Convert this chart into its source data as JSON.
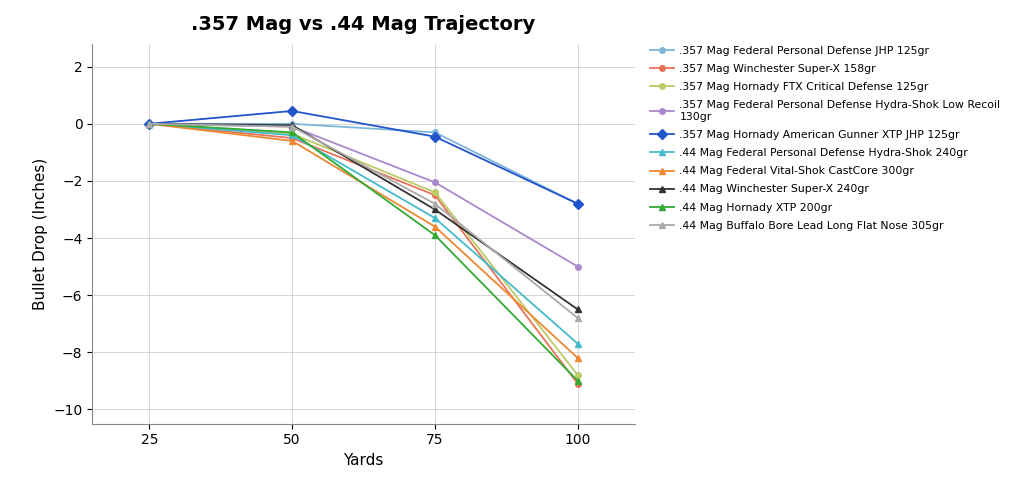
{
  "title": ".357 Mag vs .44 Mag Trajectory",
  "xlabel": "Yards",
  "ylabel": "Bullet Drop (Inches)",
  "xlim": [
    15,
    110
  ],
  "ylim": [
    -10.5,
    2.8
  ],
  "xticks": [
    25,
    50,
    75,
    100
  ],
  "yticks": [
    -10,
    -8,
    -6,
    -4,
    -2,
    0,
    2
  ],
  "background_color": "#ffffff",
  "series": [
    {
      "label": ".357 Mag Federal Personal Defense JHP 125gr",
      "x": [
        25,
        50,
        75,
        100
      ],
      "y": [
        0,
        0.0,
        -0.3,
        -2.8
      ],
      "color": "#7EB6D9",
      "marker": "o",
      "markersize": 4
    },
    {
      "label": ".357 Mag Winchester Super-X 158gr",
      "x": [
        25,
        50,
        75,
        100
      ],
      "y": [
        0,
        -0.5,
        -2.5,
        -9.1
      ],
      "color": "#E8735A",
      "marker": "o",
      "markersize": 4
    },
    {
      "label": ".357 Mag Hornady FTX Critical Defense 125gr",
      "x": [
        25,
        50,
        75,
        100
      ],
      "y": [
        0,
        -0.35,
        -2.4,
        -8.8
      ],
      "color": "#BBCC66",
      "marker": "o",
      "markersize": 4
    },
    {
      "label": ".357 Mag Federal Personal Defense Hydra-Shok Low Recoil\n130gr",
      "x": [
        25,
        50,
        75,
        100
      ],
      "y": [
        0,
        -0.1,
        -2.05,
        -5.0
      ],
      "color": "#AA88CC",
      "marker": "o",
      "markersize": 4
    },
    {
      "label": ".357 Mag Hornady American Gunner XTP JHP 125gr",
      "x": [
        25,
        50,
        75,
        100
      ],
      "y": [
        0,
        0.45,
        -0.45,
        -2.8
      ],
      "color": "#2255CC",
      "marker": "D",
      "markersize": 5
    },
    {
      "label": ".44 Mag Federal Personal Defense Hydra-Shok 240gr",
      "x": [
        25,
        50,
        75,
        100
      ],
      "y": [
        0,
        -0.4,
        -3.3,
        -7.7
      ],
      "color": "#44BBCC",
      "marker": "^",
      "markersize": 5
    },
    {
      "label": ".44 Mag Federal Vital-Shok CastCore 300gr",
      "x": [
        25,
        50,
        75,
        100
      ],
      "y": [
        0,
        -0.6,
        -3.6,
        -8.2
      ],
      "color": "#EE8833",
      "marker": "^",
      "markersize": 5
    },
    {
      "label": ".44 Mag Winchester Super-X 240gr",
      "x": [
        25,
        50,
        75,
        100
      ],
      "y": [
        0,
        -0.05,
        -3.0,
        -6.5
      ],
      "color": "#333333",
      "marker": "^",
      "markersize": 5
    },
    {
      "label": ".44 Mag Hornady XTP 200gr",
      "x": [
        25,
        50,
        75,
        100
      ],
      "y": [
        0,
        -0.3,
        -3.9,
        -9.0
      ],
      "color": "#33AA33",
      "marker": "^",
      "markersize": 5
    },
    {
      "label": ".44 Mag Buffalo Bore Lead Long Flat Nose 305gr",
      "x": [
        25,
        50,
        75,
        100
      ],
      "y": [
        0,
        -0.1,
        -2.8,
        -6.8
      ],
      "color": "#AAAAAA",
      "marker": "^",
      "markersize": 5
    }
  ],
  "figsize": [
    10.24,
    4.87
  ],
  "dpi": 100,
  "title_fontsize": 14,
  "axis_fontsize": 11,
  "legend_fontsize": 7.8,
  "linewidth": 1.3
}
